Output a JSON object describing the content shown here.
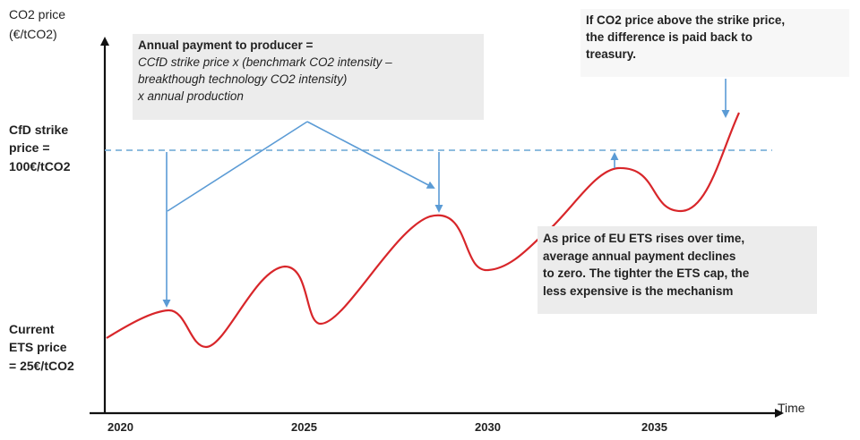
{
  "y_axis_label_line1": "CO2 price",
  "y_axis_label_line2": "(€/tCO2)",
  "x_axis_label": "Time",
  "strike_label": [
    "CfD strike",
    "price =",
    "100€/tCO2"
  ],
  "ets_label": [
    "Current",
    "ETS price",
    "= 25€/tCO2"
  ],
  "annual_box": {
    "title": "Annual payment to producer =",
    "lines": [
      "CCfD strike price x (benchmark CO2 intensity –",
      "breakthough technology CO2 intensity)",
      "x annual production"
    ]
  },
  "payback_note": [
    "If CO2 price above the strike price,",
    "the difference is paid back to",
    "treasury."
  ],
  "rise_box": [
    "As price of EU ETS rises over time,",
    "average annual payment declines",
    "to zero. The tighter the ETS cap, the",
    "less expensive is the mechanism"
  ],
  "x_ticks": [
    "2020",
    "2025",
    "2030",
    "2035"
  ],
  "colors": {
    "curve": "#d8262a",
    "arrow": "#5b9bd5",
    "dashed": "#7fb3da",
    "axis": "#111111",
    "box": "#ececec"
  }
}
